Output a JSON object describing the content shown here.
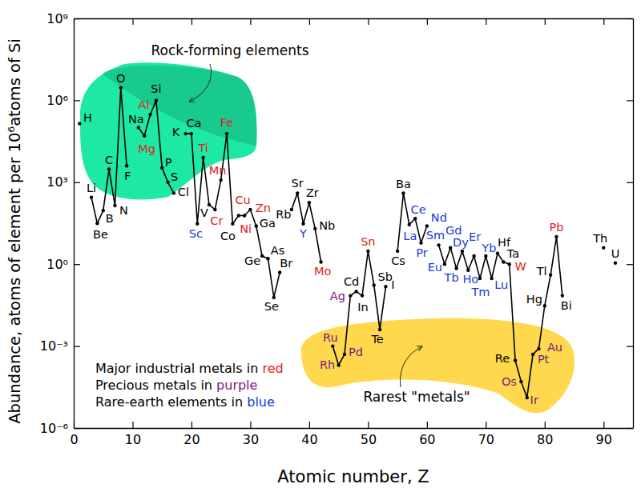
{
  "chart_data": {
    "type": "line",
    "x_label": "Atomic number, Z",
    "y_label": "Abundance, atoms of element per 10⁶atoms of Si",
    "log": "y",
    "color": "#000000",
    "marker": "circle",
    "xlim": [
      0,
      95
    ],
    "ylim": [
      1e-06,
      1000000000.0
    ],
    "xticks": [
      0,
      10,
      20,
      30,
      40,
      50,
      60,
      70,
      80,
      90
    ],
    "yticks": [
      {
        "value": 1e-06,
        "label": "10⁻⁶"
      },
      {
        "value": 0.001,
        "label": "10⁻³"
      },
      {
        "value": 1,
        "label": "10⁰"
      },
      {
        "value": 1000,
        "label": "10³"
      },
      {
        "value": 1000000,
        "label": "10⁶"
      },
      {
        "value": 1000000000,
        "label": "10⁹"
      }
    ],
    "x": [
      1,
      2,
      3,
      4,
      5,
      6,
      7,
      8,
      9,
      10,
      11,
      12,
      13,
      14,
      15,
      16,
      17,
      18,
      19,
      20,
      21,
      22,
      23,
      24,
      25,
      26,
      27,
      28,
      29,
      30,
      31,
      32,
      33,
      34,
      35,
      36,
      37,
      38,
      39,
      40,
      41,
      42,
      43,
      44,
      45,
      46,
      47,
      48,
      49,
      50,
      51,
      52,
      53,
      54,
      55,
      56,
      57,
      58,
      59,
      60,
      61,
      62,
      63,
      64,
      65,
      66,
      67,
      68,
      69,
      70,
      71,
      72,
      73,
      74,
      75,
      76,
      77,
      78,
      79,
      80,
      81,
      82,
      83,
      84,
      85,
      86,
      87,
      88,
      89,
      90,
      91,
      92
    ],
    "values": [
      140000,
      null,
      280,
      31,
      92,
      3000,
      140,
      2900000,
      4000,
      null,
      100000,
      50000,
      300000,
      1000000,
      3400,
      1000,
      400,
      null,
      60000,
      60000,
      30,
      8000,
      150,
      100,
      1200,
      60000,
      30,
      60,
      60,
      100,
      25,
      2,
      1.6,
      0.06,
      0.5,
      null,
      100,
      400,
      30,
      180,
      20,
      1.2,
      null,
      0.001,
      0.0002,
      0.0005,
      0.07,
      0.1,
      0.07,
      3,
      0.17,
      0.004,
      0.15,
      null,
      3,
      400,
      28,
      47,
      6,
      25,
      null,
      5,
      1,
      4,
      0.7,
      3,
      0.6,
      2,
      0.3,
      2,
      0.3,
      2.5,
      1.2,
      1,
      0.0003,
      5e-05,
      1.3e-05,
      0.0005,
      0.0008,
      0.03,
      0.4,
      10,
      0.07,
      null,
      null,
      null,
      null,
      null,
      null,
      4,
      null,
      1.1
    ],
    "labels": [
      "H",
      null,
      "Li",
      "Be",
      "B",
      "C",
      "N",
      "O",
      "F",
      null,
      "Na",
      "Mg",
      "Al",
      "Si",
      "P",
      "S",
      "Cl",
      null,
      "K",
      "Ca",
      "Sc",
      "Ti",
      "V",
      "Cr",
      "Mn",
      "Fe",
      "Co",
      "Ni",
      "Cu",
      "Zn",
      "Ga",
      "Ge",
      "As",
      "Se",
      "Br",
      null,
      "Rb",
      "Sr",
      "Y",
      "Zr",
      "Nb",
      "Mo",
      null,
      "Ru",
      "Rh",
      "Pd",
      "Ag",
      "Cd",
      "In",
      "Sn",
      "Sb",
      "Te",
      "I",
      null,
      "Cs",
      "Ba",
      "La",
      "Ce",
      "Pr",
      "Nd",
      null,
      "Sm",
      "Eu",
      "Gd",
      "Tb",
      "Dy",
      "Ho",
      "Er",
      "Tm",
      "Yb",
      "Lu",
      "Hf",
      "Ta",
      "W",
      "Re",
      "Os",
      "Ir",
      "Pt",
      "Au",
      "Hg",
      "Tl",
      "Pb",
      "Bi",
      null,
      null,
      null,
      null,
      null,
      null,
      "Th",
      null,
      "U"
    ],
    "colors": [
      "#000000",
      null,
      "#000000",
      "#000000",
      "#000000",
      "#000000",
      "#000000",
      "#000000",
      "#000000",
      null,
      "#000000",
      "#e02020",
      "#e02020",
      "#000000",
      "#000000",
      "#000000",
      "#000000",
      null,
      "#000000",
      "#000000",
      "#1a3ad9",
      "#e02020",
      "#000000",
      "#e02020",
      "#e02020",
      "#e02020",
      "#000000",
      "#e02020",
      "#e02020",
      "#e02020",
      "#000000",
      "#000000",
      "#000000",
      "#000000",
      "#000000",
      null,
      "#000000",
      "#000000",
      "#1a3ad9",
      "#000000",
      "#000000",
      "#e02020",
      null,
      "#7d1a7d",
      "#7d1a7d",
      "#7d1a7d",
      "#7d1a7d",
      "#000000",
      "#000000",
      "#e02020",
      "#000000",
      "#000000",
      "#000000",
      null,
      "#000000",
      "#000000",
      "#1a3ad9",
      "#1a3ad9",
      "#1a3ad9",
      "#1a3ad9",
      null,
      "#1a3ad9",
      "#1a3ad9",
      "#1a3ad9",
      "#1a3ad9",
      "#1a3ad9",
      "#1a3ad9",
      "#1a3ad9",
      "#1a3ad9",
      "#1a3ad9",
      "#1a3ad9",
      "#000000",
      "#000000",
      "#e02020",
      "#000000",
      "#7d1a7d",
      "#7d1a7d",
      "#7d1a7d",
      "#7d1a7d",
      "#000000",
      "#000000",
      "#e02020",
      "#000000",
      null,
      null,
      null,
      null,
      null,
      null,
      "#000000",
      null,
      "#000000"
    ],
    "annotations": [
      {
        "text": "Rock-forming elements",
        "color": "#1de9a4"
      },
      {
        "text": "Rarest \"metals\"",
        "color": "#ffd84d"
      }
    ],
    "key": [
      {
        "text": "Major industrial metals in ",
        "word": "red",
        "color": "#e02020"
      },
      {
        "text": "Precious metals in ",
        "word": "purple",
        "color": "#7d1a7d"
      },
      {
        "text": "Rare-earth elements in ",
        "word": "blue",
        "color": "#1a3ad9"
      }
    ]
  }
}
